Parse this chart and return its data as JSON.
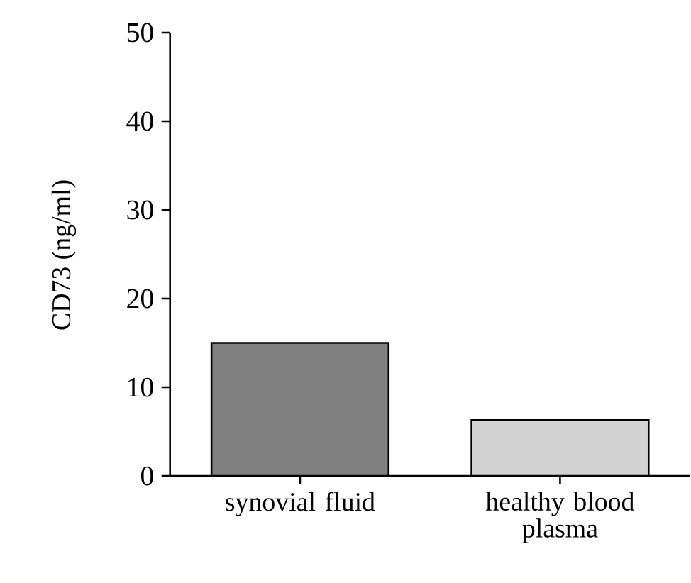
{
  "chart_data": {
    "type": "bar",
    "ylabel": "CD73 (ng/ml)",
    "categories": [
      "synovial fluid",
      "healthy blood plasma"
    ],
    "values": [
      15,
      6.3
    ],
    "colors": [
      "#808080",
      "#d3d3d3"
    ],
    "ylim": [
      0,
      50
    ],
    "yticks": [
      0,
      10,
      20,
      30,
      40,
      50
    ]
  }
}
